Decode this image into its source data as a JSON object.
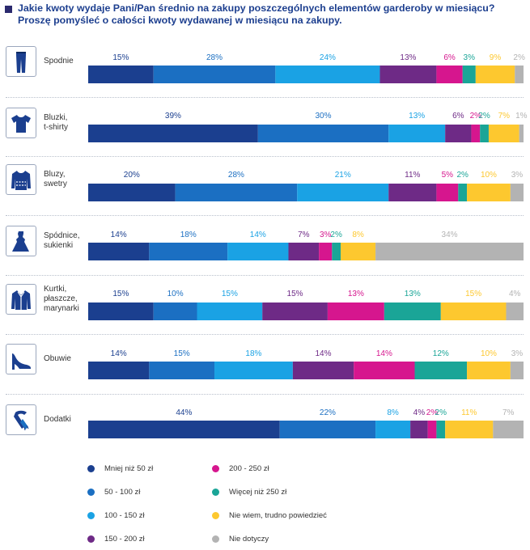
{
  "title": {
    "line1": "Jakie kwoty wydaje Pani/Pan średnio na zakupy poszczególnych elementów garderoby w miesiącu?",
    "line2": "Proszę pomyśleć o całości kwoty wydawanej w miesiącu na zakupy."
  },
  "categories": [
    {
      "label": "Spodnie",
      "icon": "trousers-icon"
    },
    {
      "label": "Bluzki,\nt-shirty",
      "icon": "tshirt-icon"
    },
    {
      "label": "Bluzy,\nswetry",
      "icon": "sweater-icon"
    },
    {
      "label": "Spódnice,\nsukienki",
      "icon": "dress-icon"
    },
    {
      "label": "Kurtki,\npłaszcze,\nmarynarki",
      "icon": "jacket-icon"
    },
    {
      "label": "Obuwie",
      "icon": "high-heel-shoe-icon"
    },
    {
      "label": "Dodatki",
      "icon": "scarf-icon"
    }
  ],
  "chart_data": {
    "type": "bar",
    "orientation": "horizontal-stacked-100",
    "title": "Jakie kwoty wydaje Pani/Pan średnio na zakupy poszczególnych elementów garderoby w miesiącu?",
    "categories": [
      "Spodnie",
      "Bluzki, t-shirty",
      "Bluzy, swetry",
      "Spódnice, sukienki",
      "Kurtki, płaszcze, marynarki",
      "Obuwie",
      "Dodatki"
    ],
    "series": [
      {
        "name": "Mniej niż 50 zł",
        "color": "#1b3f8f",
        "values": [
          15,
          39,
          20,
          14,
          15,
          14,
          44
        ]
      },
      {
        "name": "50 - 100 zł",
        "color": "#1b6fc2",
        "values": [
          28,
          30,
          28,
          18,
          10,
          15,
          22
        ]
      },
      {
        "name": "100 - 150 zł",
        "color": "#1aa2e4",
        "values": [
          24,
          13,
          21,
          14,
          15,
          18,
          8
        ]
      },
      {
        "name": "150 - 200 zł",
        "color": "#6e2a86",
        "values": [
          13,
          6,
          11,
          7,
          15,
          14,
          4
        ]
      },
      {
        "name": "200 - 250 zł",
        "color": "#d6168e",
        "values": [
          6,
          2,
          5,
          3,
          13,
          14,
          2
        ]
      },
      {
        "name": "Więcej niż 250 zł",
        "color": "#1aa597",
        "values": [
          3,
          2,
          2,
          2,
          13,
          12,
          2
        ]
      },
      {
        "name": "Nie wiem, trudno powiedzieć",
        "color": "#fdc82f",
        "values": [
          9,
          7,
          10,
          8,
          15,
          10,
          11
        ]
      },
      {
        "name": "Nie dotyczy",
        "color": "#b3b3b3",
        "values": [
          2,
          1,
          3,
          34,
          4,
          3,
          7
        ]
      }
    ],
    "unit": "%",
    "xlim": [
      0,
      100
    ]
  }
}
